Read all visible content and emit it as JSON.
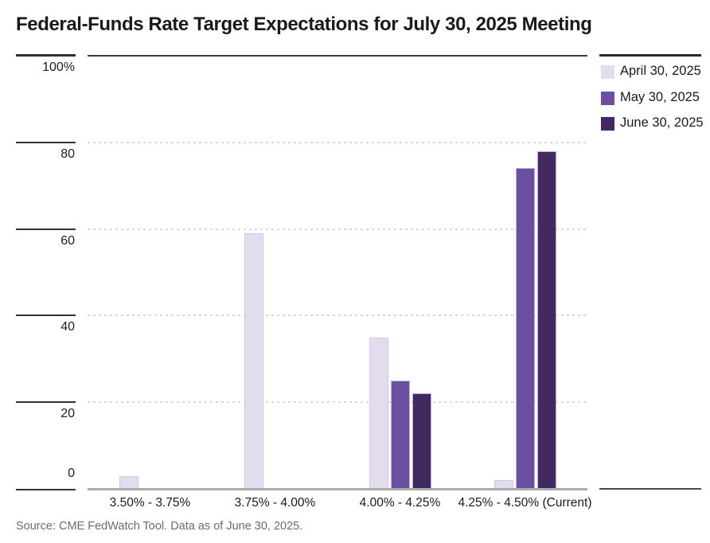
{
  "page": {
    "title": "Federal-Funds Rate Target Expectations for July 30, 2025 Meeting",
    "source_note": "Source: CME FedWatch Tool. Data as of June 30, 2025."
  },
  "chart_data": {
    "type": "bar",
    "title": "Federal-Funds Rate Target Expectations for July 30, 2025 Meeting",
    "categories": [
      "3.50% - 3.75%",
      "3.75% - 4.00%",
      "4.00% - 4.25%",
      "4.25% - 4.50% (Current)"
    ],
    "series": [
      {
        "name": "April 30, 2025",
        "color": "#e1dcee",
        "values": [
          3,
          59,
          35,
          2
        ]
      },
      {
        "name": "May 30, 2025",
        "color": "#6b4fa0",
        "values": [
          0,
          0,
          25,
          74
        ]
      },
      {
        "name": "June 30, 2025",
        "color": "#422a60",
        "values": [
          0,
          0,
          22,
          78
        ]
      }
    ],
    "xlabel": "",
    "ylabel": "",
    "ylim": [
      0,
      100
    ],
    "y_ticks": [
      {
        "value": 100,
        "label": "100%"
      },
      {
        "value": 80,
        "label": "80"
      },
      {
        "value": 60,
        "label": "60"
      },
      {
        "value": 40,
        "label": "40"
      },
      {
        "value": 20,
        "label": "20"
      },
      {
        "value": 0,
        "label": "0"
      }
    ],
    "grid": "horizontal-dotted-at-20-40-60-80",
    "legend_position": "top-right",
    "source": "Source: CME FedWatch Tool. Data as of June 30, 2025."
  },
  "colors": {
    "background": "#ffffff",
    "title_text": "#1a1a1a",
    "axis_text": "#202020",
    "source_text": "#6b6b6b",
    "gridline": "#d8d8d8",
    "baseline": "#ababab",
    "frame_line": "#2b2b2b"
  }
}
